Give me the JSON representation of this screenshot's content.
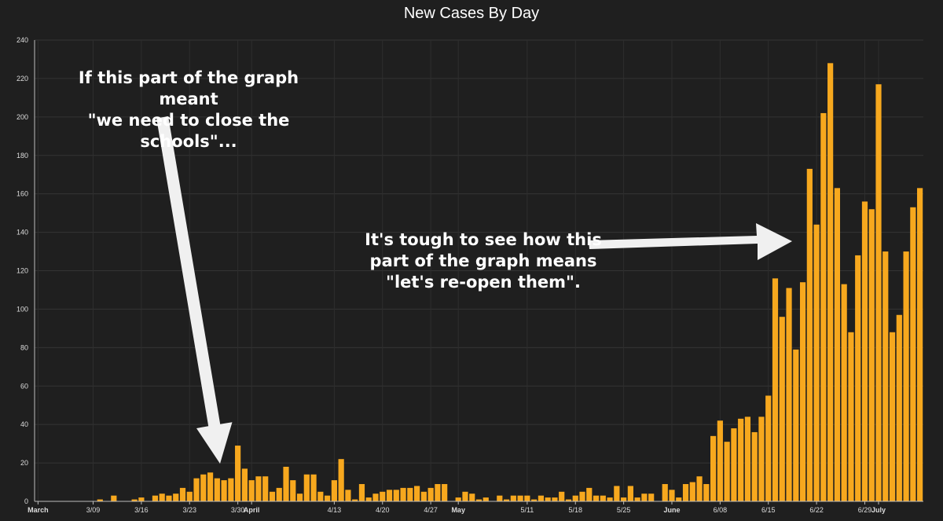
{
  "chart_data": {
    "type": "bar",
    "title": "New Cases By Day",
    "xlabel": "",
    "ylabel": "",
    "ylim": [
      0,
      240
    ],
    "yticks": [
      0,
      20,
      40,
      60,
      80,
      100,
      120,
      140,
      160,
      180,
      200,
      220,
      240
    ],
    "grid": true,
    "bar_color": "#f7a81e",
    "background": "#1f1f1f",
    "x_tick_labels": [
      {
        "day": 0,
        "label": "March",
        "bold": true
      },
      {
        "day": 8,
        "label": "3/09",
        "bold": false
      },
      {
        "day": 15,
        "label": "3/16",
        "bold": false
      },
      {
        "day": 22,
        "label": "3/23",
        "bold": false
      },
      {
        "day": 29,
        "label": "3/30",
        "bold": false
      },
      {
        "day": 31,
        "label": "April",
        "bold": true
      },
      {
        "day": 43,
        "label": "4/13",
        "bold": false
      },
      {
        "day": 50,
        "label": "4/20",
        "bold": false
      },
      {
        "day": 57,
        "label": "4/27",
        "bold": false
      },
      {
        "day": 61,
        "label": "May",
        "bold": true
      },
      {
        "day": 71,
        "label": "5/11",
        "bold": false
      },
      {
        "day": 78,
        "label": "5/18",
        "bold": false
      },
      {
        "day": 85,
        "label": "5/25",
        "bold": false
      },
      {
        "day": 92,
        "label": "June",
        "bold": true
      },
      {
        "day": 99,
        "label": "6/08",
        "bold": false
      },
      {
        "day": 106,
        "label": "6/15",
        "bold": false
      },
      {
        "day": 113,
        "label": "6/22",
        "bold": false
      },
      {
        "day": 120,
        "label": "6/29",
        "bold": false
      },
      {
        "day": 122,
        "label": "July",
        "bold": true
      }
    ],
    "series": [
      {
        "values": [
          0,
          0,
          0,
          0,
          0,
          0,
          0,
          0,
          0,
          1,
          0,
          3,
          0,
          0,
          1,
          2,
          0,
          3,
          4,
          3,
          4,
          7,
          5,
          12,
          14,
          15,
          12,
          11,
          12,
          29,
          17,
          11,
          13,
          13,
          5,
          7,
          18,
          11,
          4,
          14,
          14,
          5,
          3,
          11,
          22,
          6,
          1,
          9,
          2,
          4,
          5,
          6,
          6,
          7,
          7,
          8,
          5,
          7,
          9,
          9,
          0,
          2,
          5,
          4,
          1,
          2,
          0,
          3,
          1,
          3,
          3,
          3,
          1,
          3,
          2,
          2,
          5,
          1,
          3,
          5,
          7,
          3,
          3,
          2,
          8,
          2,
          8,
          2,
          4,
          4,
          0,
          9,
          6,
          2,
          9,
          10,
          13,
          9,
          34,
          42,
          31,
          38,
          43,
          44,
          36,
          44,
          55,
          116,
          96,
          111,
          79,
          114,
          173,
          144,
          202,
          228,
          163,
          113,
          88,
          128,
          156,
          152,
          217,
          130,
          88,
          97,
          130,
          153,
          163
        ]
      }
    ],
    "annotations": [
      {
        "lines": [
          "If this part of the graph meant",
          "\"we need to close the schools\"..."
        ]
      },
      {
        "lines": [
          "It's tough to see how this",
          "part of the graph means",
          "\"let's re-open them\"."
        ]
      }
    ]
  }
}
